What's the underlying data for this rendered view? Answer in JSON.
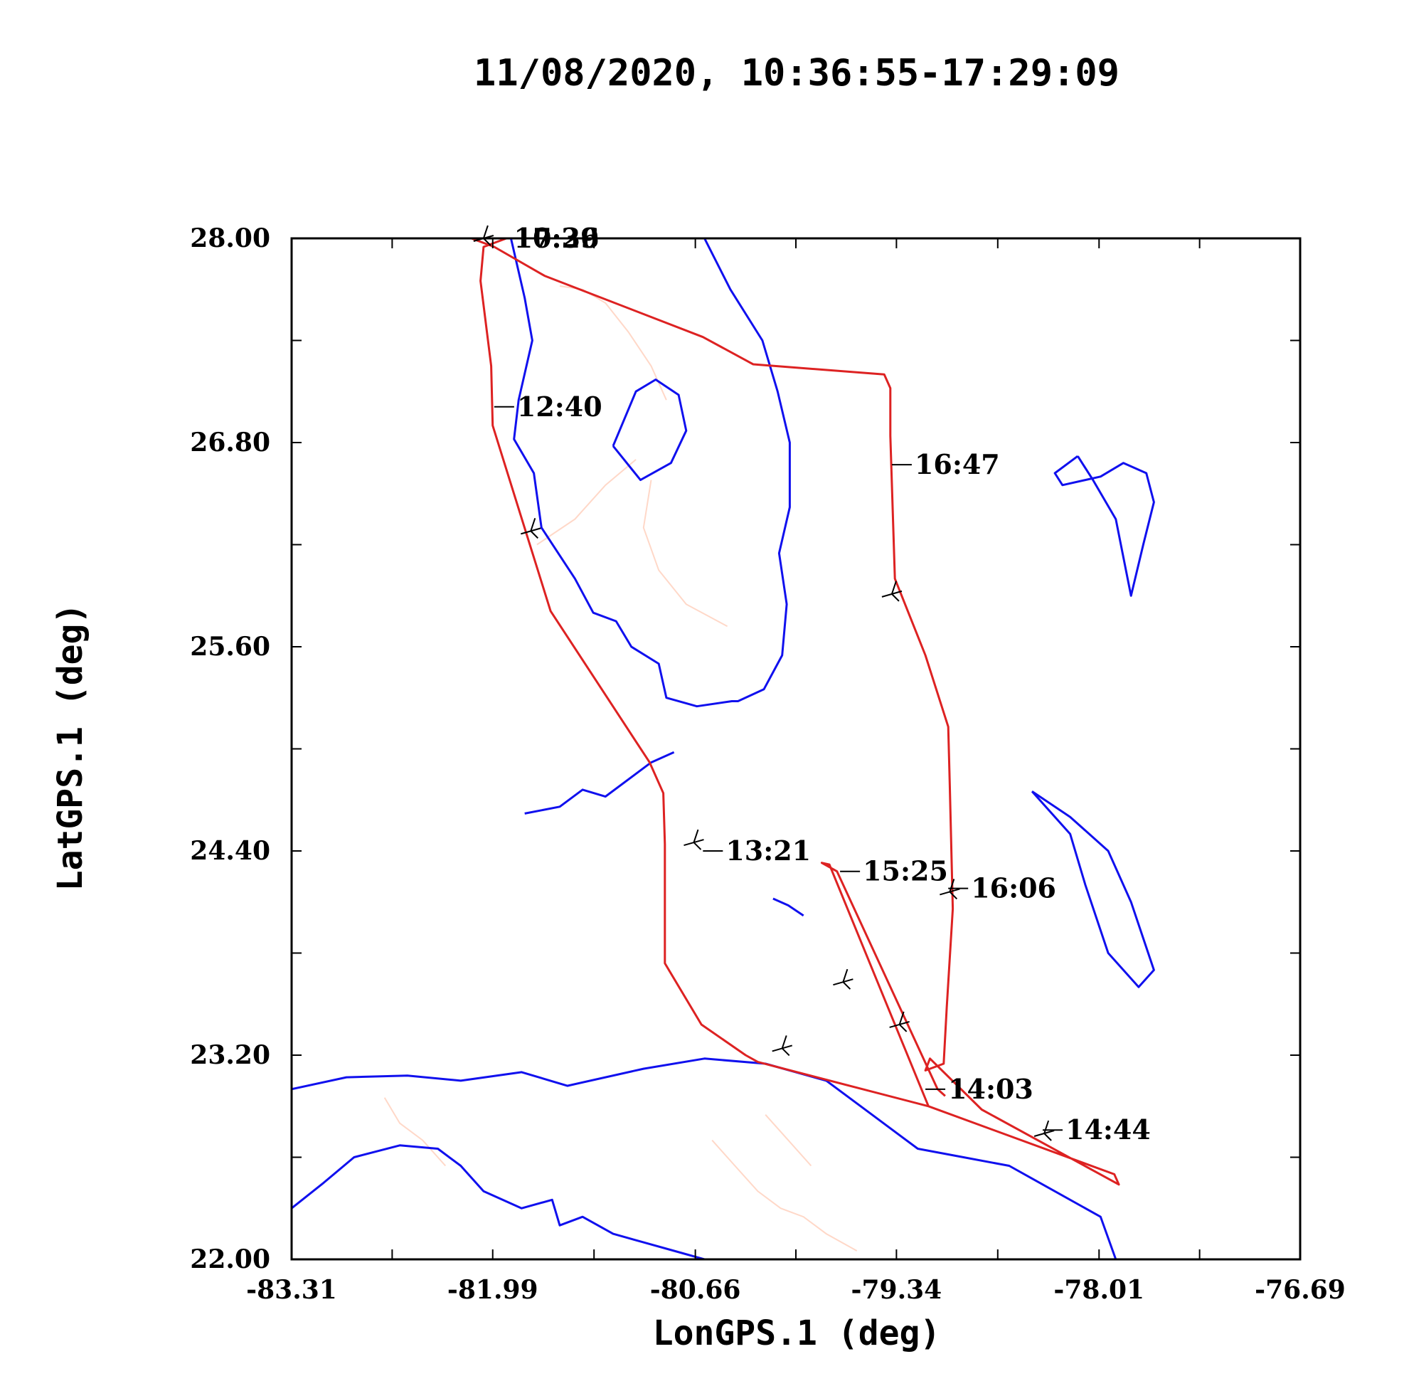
{
  "chart_data": {
    "type": "line",
    "title": "11/08/2020, 10:36:55-17:29:09",
    "xlabel": "LonGPS.1 (deg)",
    "ylabel": "LatGPS.1 (deg)",
    "xlim": [
      -83.31,
      -76.69
    ],
    "ylim": [
      22.0,
      28.0
    ],
    "x_ticks": [
      -83.31,
      -81.99,
      -80.66,
      -79.34,
      -78.01,
      -76.69
    ],
    "x_tick_labels": [
      "-83.31",
      "-81.99",
      "-80.66",
      "-79.34",
      "-78.01",
      "-76.69"
    ],
    "y_ticks": [
      22.0,
      23.2,
      24.4,
      25.6,
      26.8,
      28.0
    ],
    "y_tick_labels": [
      "22.00",
      "23.20",
      "24.40",
      "25.60",
      "26.80",
      "28.00"
    ],
    "grid": false,
    "colors": {
      "track": "#dd2222",
      "coastline": "#1010ee",
      "rivers": "#ffd8c8",
      "axes": "#000000"
    },
    "flight_track": {
      "name": "",
      "lon": [
        -82.13,
        -81.98,
        -81.65,
        -80.61,
        -80.28,
        -79.42,
        -79.38,
        -79.38,
        -79.35,
        -79.15,
        -79.0,
        -78.99,
        -78.97,
        -79.01,
        -79.03,
        -79.15,
        -79.12,
        -78.78,
        -77.88,
        -77.91,
        -79.13,
        -80.25,
        -80.33,
        -80.62,
        -80.86,
        -80.86,
        -80.87,
        -80.96,
        -81.61,
        -81.99,
        -82.0,
        -82.07,
        -82.05,
        -81.9,
        -81.95
      ],
      "lat": [
        28.0,
        27.95,
        27.78,
        27.42,
        27.26,
        27.2,
        27.12,
        26.84,
        26.0,
        25.55,
        25.13,
        24.8,
        24.06,
        23.48,
        23.15,
        23.11,
        23.18,
        22.88,
        22.44,
        22.5,
        22.9,
        23.16,
        23.2,
        23.38,
        23.74,
        24.44,
        24.74,
        24.92,
        25.81,
        26.9,
        27.25,
        27.75,
        27.95,
        28.0,
        28.0
      ]
    },
    "return_leg": {
      "name": "",
      "lon": [
        -79.13,
        -79.78,
        -79.83,
        -79.73,
        -79.07,
        -79.02
      ],
      "lat": [
        22.9,
        24.32,
        24.33,
        24.28,
        23.0,
        22.96
      ]
    },
    "time_markers": [
      {
        "label": "12:40",
        "lon": -81.98,
        "lat": 27.01
      },
      {
        "label": "13:21",
        "lon": -80.61,
        "lat": 24.4
      },
      {
        "label": "14:03",
        "lon": -79.15,
        "lat": 23.0
      },
      {
        "label": "14:44",
        "lon": -78.38,
        "lat": 22.76
      },
      {
        "label": "15:25",
        "lon": -79.71,
        "lat": 24.28
      },
      {
        "label": "16:06",
        "lon": -79.0,
        "lat": 24.18
      },
      {
        "label": "16:47",
        "lon": -79.37,
        "lat": 26.67
      },
      {
        "label": "17:29",
        "lon": -82.0,
        "lat": 28.0
      },
      {
        "label": "10:36",
        "lon": -82.0,
        "lat": 28.0
      }
    ],
    "wind_barbs": [
      {
        "lon": -82.05,
        "lat": 28.0
      },
      {
        "lon": -81.74,
        "lat": 26.28
      },
      {
        "lon": -80.67,
        "lat": 24.45
      },
      {
        "lon": -79.69,
        "lat": 23.63
      },
      {
        "lon": -79.32,
        "lat": 23.38
      },
      {
        "lon": -80.09,
        "lat": 23.24
      },
      {
        "lon": -78.37,
        "lat": 22.74
      },
      {
        "lon": -79.37,
        "lat": 25.91
      },
      {
        "lon": -78.99,
        "lat": 24.16
      }
    ],
    "coastlines": [
      {
        "name": "",
        "lon": [
          -81.87,
          -81.78,
          -81.73,
          -81.82,
          -81.85,
          -81.72,
          -81.67,
          -81.45,
          -81.33,
          -81.18,
          -81.08,
          -80.9,
          -80.85,
          -80.65,
          -80.42,
          -80.38,
          -80.21,
          -80.09,
          -80.06,
          -80.11,
          -80.04,
          -80.04,
          -80.12,
          -80.22,
          -80.43,
          -80.6
        ],
        "lat": [
          28.0,
          27.65,
          27.4,
          27.05,
          26.82,
          26.62,
          26.3,
          26.0,
          25.8,
          25.75,
          25.6,
          25.5,
          25.3,
          25.25,
          25.28,
          25.28,
          25.35,
          25.55,
          25.85,
          26.15,
          26.42,
          26.8,
          27.1,
          27.4,
          27.7,
          28.0
        ]
      },
      {
        "name": "",
        "lon": [
          -81.2,
          -81.02,
          -80.82,
          -80.72,
          -80.77,
          -80.92,
          -81.05,
          -81.2
        ],
        "lat": [
          26.78,
          26.58,
          26.68,
          26.87,
          27.08,
          27.17,
          27.1,
          26.78
        ]
      },
      {
        "name": "",
        "lon": [
          -81.78,
          -81.55,
          -81.4,
          -81.25,
          -80.95,
          -80.8
        ],
        "lat": [
          24.62,
          24.66,
          24.76,
          24.72,
          24.92,
          24.98
        ]
      },
      {
        "name": "",
        "lon": [
          -78.15,
          -78.3,
          -78.25,
          -78.0,
          -77.85,
          -77.7,
          -77.65,
          -77.72,
          -77.8,
          -77.9,
          -78.05,
          -78.15
        ],
        "lat": [
          26.72,
          26.62,
          26.55,
          26.6,
          26.68,
          26.62,
          26.45,
          26.2,
          25.9,
          26.35,
          26.58,
          26.72
        ]
      },
      {
        "name": "",
        "lon": [
          -78.45,
          -78.2,
          -77.95,
          -77.8,
          -77.65,
          -77.75,
          -77.95,
          -78.1,
          -78.2,
          -78.45
        ],
        "lat": [
          24.75,
          24.6,
          24.4,
          24.1,
          23.7,
          23.6,
          23.8,
          24.2,
          24.5,
          24.75
        ]
      },
      {
        "name": "",
        "lon": [
          -83.31,
          -82.95,
          -82.55,
          -82.2,
          -81.8,
          -81.5,
          -81.0,
          -80.6,
          -80.2,
          -79.8,
          -79.5,
          -79.2,
          -78.9,
          -78.6,
          -78.3,
          -78.0,
          -77.9
        ],
        "lat": [
          23.0,
          23.07,
          23.08,
          23.05,
          23.1,
          23.02,
          23.12,
          23.18,
          23.15,
          23.05,
          22.85,
          22.65,
          22.6,
          22.55,
          22.4,
          22.25,
          22.0
        ]
      },
      {
        "name": "",
        "lon": [
          -83.31,
          -83.1,
          -82.9,
          -82.6,
          -82.35,
          -82.2,
          -82.05,
          -81.8,
          -81.6,
          -81.55,
          -81.4,
          -81.2,
          -81.0,
          -80.8,
          -80.6,
          -80.4
        ],
        "lat": [
          22.3,
          22.45,
          22.6,
          22.67,
          22.65,
          22.55,
          22.4,
          22.3,
          22.35,
          22.2,
          22.25,
          22.15,
          22.1,
          22.05,
          22.0,
          22.0
        ]
      },
      {
        "name": "",
        "lon": [
          -79.95,
          -80.05,
          -80.15
        ],
        "lat": [
          24.02,
          24.08,
          24.12
        ]
      }
    ],
    "rivers": [
      {
        "name": "",
        "lon": [
          -80.85,
          -80.95,
          -81.1,
          -81.25,
          -81.4,
          -81.55
        ],
        "lat": [
          27.05,
          27.25,
          27.45,
          27.62,
          27.7,
          27.72
        ]
      },
      {
        "name": "",
        "lon": [
          -80.95,
          -81.0,
          -80.9,
          -80.72,
          -80.45
        ],
        "lat": [
          26.58,
          26.3,
          26.05,
          25.85,
          25.72
        ]
      },
      {
        "name": "",
        "lon": [
          -81.7,
          -81.45,
          -81.25,
          -81.05
        ],
        "lat": [
          26.2,
          26.35,
          26.55,
          26.7
        ]
      },
      {
        "name": "",
        "lon": [
          -82.7,
          -82.6,
          -82.45,
          -82.3
        ],
        "lat": [
          22.95,
          22.8,
          22.7,
          22.55
        ]
      },
      {
        "name": "",
        "lon": [
          -80.55,
          -80.4,
          -80.25,
          -80.1,
          -79.95,
          -79.8,
          -79.6
        ],
        "lat": [
          22.7,
          22.55,
          22.4,
          22.3,
          22.25,
          22.15,
          22.05
        ]
      },
      {
        "name": "",
        "lon": [
          -80.2,
          -80.05,
          -79.9
        ],
        "lat": [
          22.85,
          22.7,
          22.55
        ]
      }
    ]
  }
}
